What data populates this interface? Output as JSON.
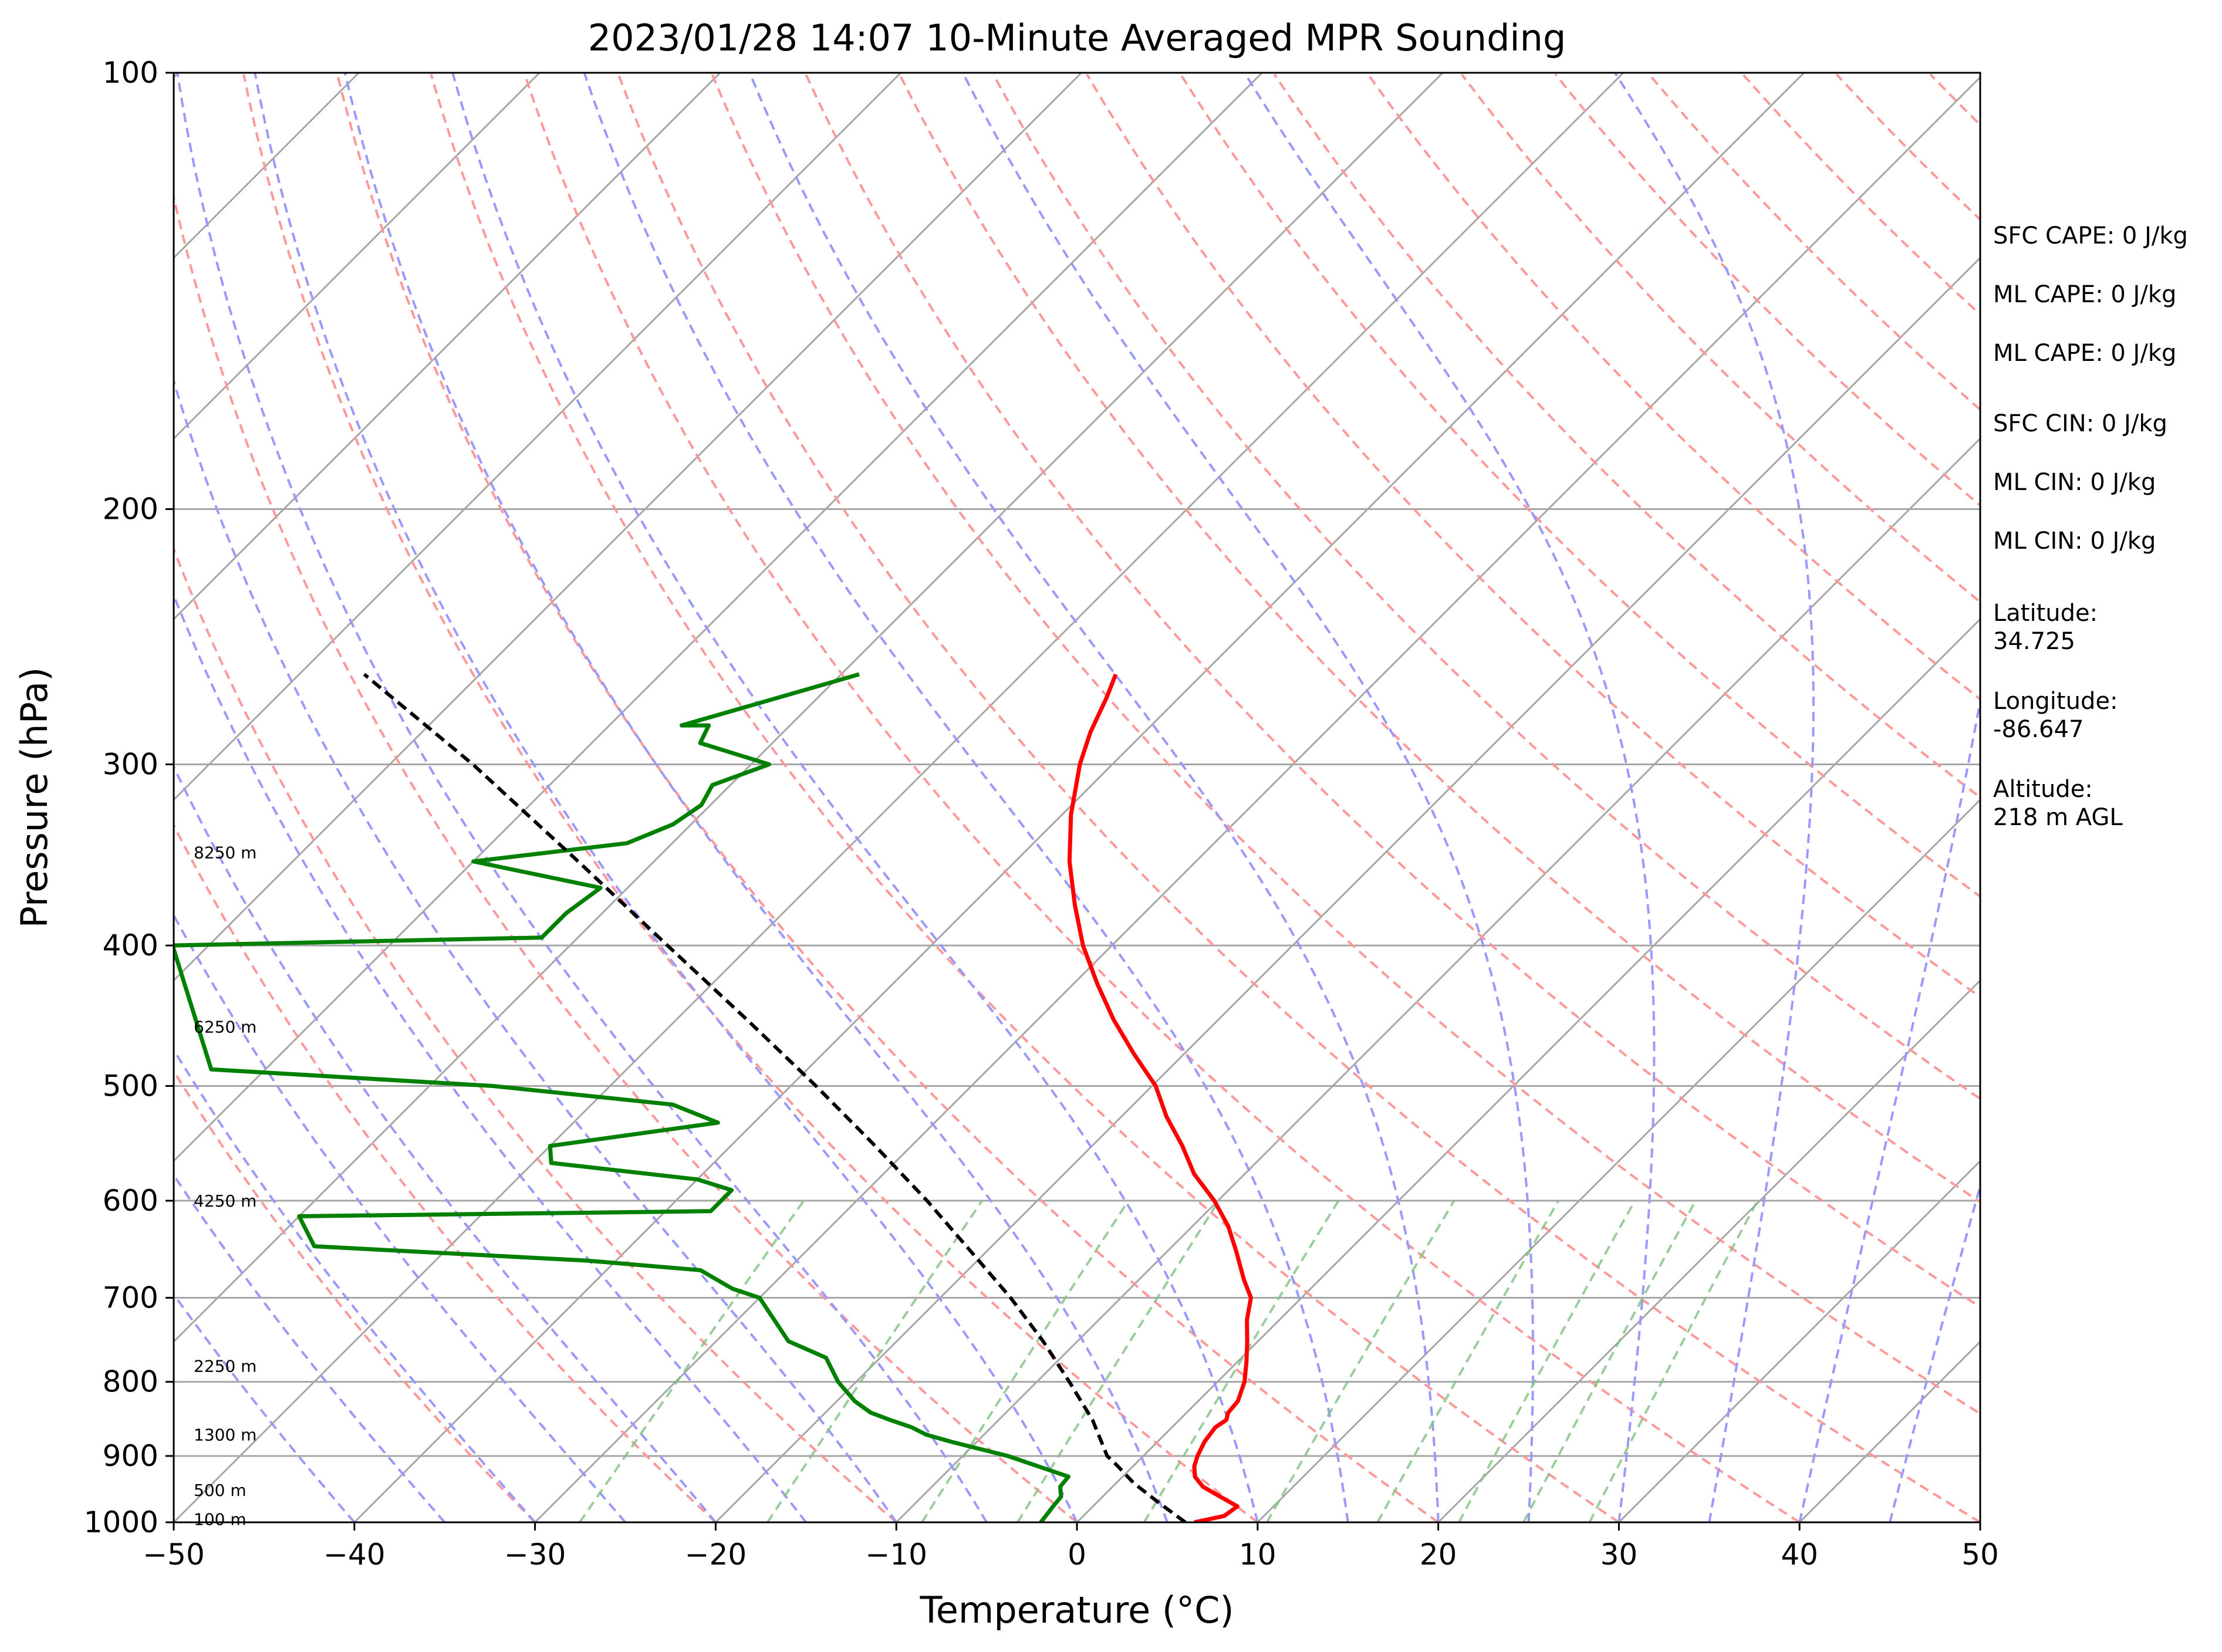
{
  "chart_data": {
    "type": "skew-t log-p sounding",
    "title": "2023/01/28 14:07 10-Minute Averaged MPR Sounding",
    "xlabel": "Temperature (°C)",
    "ylabel": "Pressure (hPa)",
    "xlim": [
      -50,
      50
    ],
    "ylim": [
      1000,
      100
    ],
    "y_scale": "log",
    "grid": true,
    "x_ticks": [
      -50,
      -40,
      -30,
      -20,
      -10,
      0,
      10,
      20,
      30,
      40,
      50
    ],
    "x_tick_labels": [
      "−50",
      "−40",
      "−30",
      "−20",
      "−10",
      "0",
      "10",
      "20",
      "30",
      "40",
      "50"
    ],
    "y_ticks": [
      100,
      200,
      300,
      400,
      500,
      600,
      700,
      800,
      900,
      1000
    ],
    "y_tick_labels": [
      "100",
      "200",
      "300",
      "400",
      "500",
      "600",
      "700",
      "800",
      "900",
      "1000"
    ],
    "series": [
      {
        "role": "temperature",
        "color": "#ff0000",
        "p": [
          1000,
          990,
          975,
          960,
          945,
          930,
          915,
          900,
          880,
          860,
          850,
          840,
          825,
          800,
          775,
          750,
          725,
          700,
          680,
          650,
          625,
          600,
          575,
          550,
          525,
          500,
          475,
          450,
          425,
          400,
          375,
          350,
          325,
          300,
          285,
          270,
          260
        ],
        "t": [
          6.5,
          7.8,
          8.0,
          6.5,
          5.0,
          4.0,
          3.4,
          3.0,
          2.6,
          2.4,
          2.6,
          2.3,
          2.2,
          1.5,
          0.5,
          -0.6,
          -1.8,
          -2.8,
          -4.2,
          -6.2,
          -8.0,
          -10.2,
          -12.8,
          -15.0,
          -17.5,
          -19.8,
          -22.8,
          -25.8,
          -28.7,
          -31.6,
          -34.3,
          -37.0,
          -39.5,
          -41.8,
          -43.0,
          -44.0,
          -44.8
        ]
      },
      {
        "role": "dewpoint",
        "color": "#008000",
        "p": [
          1000,
          975,
          960,
          945,
          930,
          900,
          880,
          870,
          860,
          850,
          840,
          825,
          800,
          770,
          750,
          700,
          690,
          670,
          660,
          645,
          615,
          610,
          590,
          580,
          565,
          550,
          530,
          515,
          500,
          487,
          400,
          395,
          380,
          365,
          350,
          340,
          330,
          320,
          310,
          300,
          290,
          282,
          282,
          260
        ],
        "td": [
          -2.0,
          -2.2,
          -2.3,
          -2.9,
          -3.0,
          -7.5,
          -11.4,
          -13.2,
          -14.4,
          -16.0,
          -17.5,
          -19.0,
          -21.0,
          -23.0,
          -26.0,
          -30.0,
          -32.0,
          -34.8,
          -41.5,
          -57.5,
          -60.0,
          -37.5,
          -37.5,
          -40.0,
          -49.0,
          -50.0,
          -42.0,
          -45.5,
          -56.5,
          -73.0,
          -82.0,
          -62.0,
          -62.0,
          -61.5,
          -70.0,
          -62.5,
          -61.0,
          -60.5,
          -61.0,
          -59.0,
          -64.0,
          -64.5,
          -66.0,
          -59.0
        ]
      },
      {
        "role": "parcel",
        "color": "#000000",
        "p": [
          1000,
          970,
          940,
          910,
          900,
          850,
          800,
          750,
          700,
          650,
          600,
          550,
          500,
          450,
          400,
          350,
          300,
          260
        ],
        "t": [
          6.0,
          3.5,
          1.0,
          -1.2,
          -2.0,
          -4.8,
          -8.2,
          -11.9,
          -16.1,
          -20.9,
          -26.1,
          -32.0,
          -38.6,
          -46.1,
          -54.6,
          -64.2,
          -75.4,
          -86.4
        ]
      }
    ],
    "height_labels": [
      {
        "p": 995,
        "text": "100 m"
      },
      {
        "p": 950,
        "text": "500 m"
      },
      {
        "p": 870,
        "text": "1300 m"
      },
      {
        "p": 780,
        "text": "2250 m"
      },
      {
        "p": 600,
        "text": "4250 m"
      },
      {
        "p": 455,
        "text": "6250 m"
      },
      {
        "p": 345,
        "text": "8250 m"
      }
    ],
    "annotations": [
      "SFC CAPE: 0 J/kg",
      "ML CAPE: 0 J/kg",
      "ML CAPE: 0 J/kg",
      "SFC CIN: 0 J/kg",
      "ML CIN: 0 J/kg",
      "ML CIN: 0 J/kg",
      "Latitude:",
      "34.725",
      "Longitude:",
      "-86.647",
      "Altitude:",
      "218 m AGL"
    ],
    "colors": {
      "temperature": "#ff0000",
      "dewpoint": "#008000",
      "parcel": "#000000",
      "isotherms": "#a6a6a6",
      "dry_adiabats": "#ff9999",
      "moist_adiabats": "#9999ff",
      "mixing_ratio": "#80c080"
    }
  }
}
